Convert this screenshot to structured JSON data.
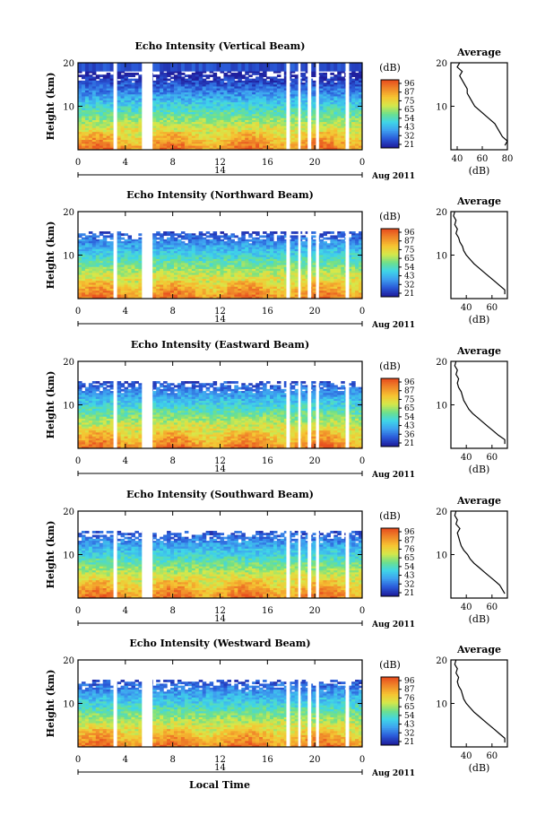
{
  "chart_data": {
    "type": "heatmap",
    "panels": [
      {
        "title": "Echo Intensity (Vertical Beam)",
        "ylabel": "Height (km)",
        "y_ticks": [
          10,
          20
        ],
        "x_ticks": [
          "0",
          "4",
          "8",
          "12",
          "16",
          "20",
          "0"
        ],
        "date_day": "14",
        "date_label": "Aug 2011",
        "cbar_label": "(dB)",
        "cbar_ticks": [
          "96",
          "87",
          "75",
          "65",
          "54",
          "43",
          "32",
          "21"
        ],
        "avg_title": "Average",
        "avg_xlabel": "(dB)",
        "avg_x_ticks": [
          "40",
          "60",
          "80"
        ],
        "avg_xlim": [
          35,
          80
        ],
        "avg_profile": {
          "height": [
            1,
            2,
            3,
            4,
            5,
            6,
            7,
            8,
            9,
            10,
            11,
            12,
            13,
            14,
            15,
            16,
            17,
            18,
            19,
            20
          ],
          "db": [
            78,
            80,
            76,
            74,
            72,
            70,
            66,
            62,
            58,
            54,
            52,
            50,
            48,
            48,
            46,
            44,
            42,
            44,
            40,
            42
          ]
        }
      },
      {
        "title": "Echo Intensity (Northward Beam)",
        "ylabel": "Height (km)",
        "y_ticks": [
          10,
          20
        ],
        "x_ticks": [
          "0",
          "4",
          "8",
          "12",
          "16",
          "20",
          "0"
        ],
        "date_day": "14",
        "date_label": "Aug 2011",
        "cbar_label": "(dB)",
        "cbar_ticks": [
          "96",
          "87",
          "75",
          "65",
          "54",
          "43",
          "32",
          "21"
        ],
        "avg_title": "Average",
        "avg_xlabel": "(dB)",
        "avg_x_ticks": [
          "40",
          "60"
        ],
        "avg_xlim": [
          28,
          72
        ],
        "avg_profile": {
          "height": [
            1,
            2,
            3,
            4,
            5,
            6,
            7,
            8,
            9,
            10,
            11,
            12,
            13,
            14,
            15,
            16,
            17,
            18,
            19,
            20
          ],
          "db": [
            70,
            70,
            66,
            62,
            58,
            54,
            50,
            46,
            43,
            40,
            38,
            37,
            35,
            34,
            32,
            33,
            31,
            32,
            30,
            31
          ]
        }
      },
      {
        "title": "Echo Intensity (Eastward Beam)",
        "ylabel": "Height (km)",
        "y_ticks": [
          10,
          20
        ],
        "x_ticks": [
          "0",
          "4",
          "8",
          "12",
          "16",
          "20",
          "0"
        ],
        "date_day": "14",
        "date_label": "Aug 2011",
        "cbar_label": "(dB)",
        "cbar_ticks": [
          "96",
          "87",
          "75",
          "65",
          "54",
          "43",
          "36",
          "21"
        ],
        "avg_title": "Average",
        "avg_xlabel": "(dB)",
        "avg_x_ticks": [
          "40",
          "60"
        ],
        "avg_xlim": [
          28,
          72
        ],
        "avg_profile": {
          "height": [
            1,
            2,
            3,
            4,
            5,
            6,
            7,
            8,
            9,
            10,
            11,
            12,
            13,
            14,
            15,
            16,
            17,
            18,
            19,
            20
          ],
          "db": [
            70,
            70,
            65,
            61,
            57,
            53,
            49,
            45,
            42,
            40,
            38,
            37,
            36,
            34,
            33,
            34,
            32,
            33,
            31,
            32
          ]
        }
      },
      {
        "title": "Echo Intensity (Southward Beam)",
        "ylabel": "Height (km)",
        "y_ticks": [
          10,
          20
        ],
        "x_ticks": [
          "0",
          "4",
          "8",
          "12",
          "16",
          "20",
          "0"
        ],
        "date_day": "14",
        "date_label": "Aug 2011",
        "cbar_label": "(dB)",
        "cbar_ticks": [
          "96",
          "87",
          "76",
          "65",
          "54",
          "43",
          "32",
          "21"
        ],
        "avg_title": "Average",
        "avg_xlabel": "(dB)",
        "avg_x_ticks": [
          "40",
          "60"
        ],
        "avg_xlim": [
          28,
          72
        ],
        "avg_profile": {
          "height": [
            1,
            2,
            3,
            4,
            5,
            6,
            7,
            8,
            9,
            10,
            11,
            12,
            13,
            14,
            15,
            16,
            17,
            18,
            19,
            20
          ],
          "db": [
            70,
            68,
            66,
            62,
            58,
            54,
            50,
            46,
            43,
            41,
            38,
            36,
            35,
            34,
            33,
            35,
            32,
            33,
            31,
            32
          ]
        }
      },
      {
        "title": "Echo Intensity (Westward Beam)",
        "ylabel": "Height (km)",
        "y_ticks": [
          10,
          20
        ],
        "x_ticks": [
          "0",
          "4",
          "8",
          "12",
          "16",
          "20",
          "0"
        ],
        "date_day": "14",
        "date_label": "Aug 2011",
        "cbar_label": "(dB)",
        "cbar_ticks": [
          "96",
          "87",
          "76",
          "65",
          "54",
          "43",
          "32",
          "21"
        ],
        "avg_title": "Average",
        "avg_xlabel": "(dB)",
        "avg_x_ticks": [
          "40",
          "60"
        ],
        "avg_xlim": [
          28,
          72
        ],
        "avg_profile": {
          "height": [
            1,
            2,
            3,
            4,
            5,
            6,
            7,
            8,
            9,
            10,
            11,
            12,
            13,
            14,
            15,
            16,
            17,
            18,
            19,
            20
          ],
          "db": [
            70,
            70,
            66,
            62,
            58,
            54,
            50,
            46,
            43,
            40,
            38,
            37,
            36,
            34,
            33,
            34,
            32,
            33,
            31,
            32
          ]
        }
      }
    ],
    "xlabel": "Local Time",
    "ylim": [
      0,
      20
    ],
    "xlim_hours": [
      0,
      24
    ],
    "data_gap_hours": [
      [
        3,
        3.3
      ],
      [
        5.4,
        6.3
      ],
      [
        17.6,
        17.9
      ],
      [
        18.6,
        18.8
      ],
      [
        19.4,
        19.7
      ],
      [
        20.1,
        20.35
      ],
      [
        22.6,
        22.9
      ]
    ],
    "colorscale": [
      "#1f1f9e",
      "#2a5ad8",
      "#3ea0f0",
      "#3fd6e8",
      "#6fe08a",
      "#d6e84a",
      "#f6c432",
      "#f08a2a",
      "#e8501f"
    ]
  }
}
